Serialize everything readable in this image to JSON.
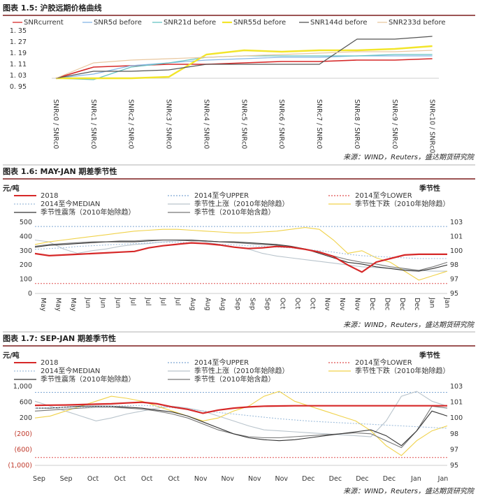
{
  "colors": {
    "title_rule": "#7b1c1c",
    "snr": [
      "#d62828",
      "#86b6e6",
      "#66c2c2",
      "#f2e52a",
      "#555555",
      "#e9c8a0"
    ],
    "season": {
      "current": "#d62828",
      "upper": "#7fa7d4",
      "lower": "#e05050",
      "median": "#9fbedc",
      "rise": "#b9c4cc",
      "fall": "#f0d24a",
      "shock": "#333333",
      "all": "#777777"
    }
  },
  "chart_data": [
    {
      "id": "fig15",
      "type": "line",
      "title": "图表 1.5: 沪胶远期价格曲线",
      "source": "来源：WIND，Reuters，盛达期货研究院",
      "categories": [
        "SNRc0 / SNRc0",
        "SNRc1 / SNRc0",
        "SNRc2 / SNRc0",
        "SNRc3 / SNRc0",
        "SNRc4 / SNRc0",
        "SNRc5 / SNRc0",
        "SNRc6 / SNRc0",
        "SNRc7 / SNRc0",
        "SNRc8 / SNRc0",
        "SNRc9 / SNRc0",
        "SNRc10 / SNRc0"
      ],
      "y_ticks": [
        "1. 35",
        "1. 27",
        "1. 19",
        "1. 11",
        "1. 03",
        "0. 95"
      ],
      "ylim": [
        0.95,
        1.35
      ],
      "series": [
        {
          "name": "SNRcurrent",
          "values": [
            1.01,
            1.09,
            1.1,
            1.11,
            1.11,
            1.12,
            1.13,
            1.13,
            1.14,
            1.14,
            1.15
          ]
        },
        {
          "name": "SNR5d before",
          "values": [
            1.01,
            1.04,
            1.1,
            1.12,
            1.14,
            1.15,
            1.16,
            1.16,
            1.17,
            1.17,
            1.17
          ]
        },
        {
          "name": "SNR21d before",
          "values": [
            1.01,
            1.0,
            1.09,
            1.12,
            1.16,
            1.17,
            1.17,
            1.17,
            1.17,
            1.18,
            1.18
          ]
        },
        {
          "name": "SNR55d before",
          "values": [
            1.01,
            1.01,
            1.01,
            1.02,
            1.18,
            1.21,
            1.2,
            1.21,
            1.21,
            1.22,
            1.24
          ]
        },
        {
          "name": "SNR144d before",
          "values": [
            1.01,
            1.06,
            1.06,
            1.07,
            1.11,
            1.11,
            1.11,
            1.11,
            1.29,
            1.29,
            1.31
          ]
        },
        {
          "name": "SNR233d before",
          "values": [
            1.01,
            1.12,
            1.14,
            1.15,
            1.16,
            1.17,
            1.18,
            1.19,
            1.2,
            1.2,
            1.21
          ]
        }
      ]
    },
    {
      "id": "fig16",
      "type": "line",
      "title": "图表 1.6: MAY-JAN 期差季节性",
      "source": "来源：WIND，Reuters，盛达期货研究院",
      "unit": "元/吨",
      "right_axis_title": "季节性",
      "left_ticks": [
        "500",
        "400",
        "300",
        "200",
        "100",
        "0"
      ],
      "ylim_left": [
        0,
        500
      ],
      "right_ticks": [
        "103",
        "101",
        "100",
        "98",
        "97",
        "95"
      ],
      "ylim_right": [
        95,
        103
      ],
      "x_ticks": [
        "May",
        "May",
        "May",
        "Jun",
        "Jun",
        "Jun",
        "Jul",
        "Jul",
        "Jul",
        "Jul",
        "Aug",
        "Aug",
        "Aug",
        "Sep",
        "Sep",
        "Sep",
        "Oct",
        "Oct",
        "Oct",
        "Nov",
        "Nov",
        "Nov",
        "Dec",
        "Dec",
        "Dec",
        "Dec",
        "Jan",
        "Jan"
      ],
      "legend": [
        {
          "key": "current",
          "label": "2018"
        },
        {
          "key": "upper",
          "label": "2014至今UPPER"
        },
        {
          "key": "lower",
          "label": "2014至今LOWER"
        },
        {
          "key": "median",
          "label": "2014至今MEDIAN"
        },
        {
          "key": "rise",
          "label": "季节性上涨（2010年始除趋）"
        },
        {
          "key": "fall",
          "label": "季节性下跌（2010年始除趋）"
        },
        {
          "key": "shock",
          "label": "季节性震荡（2010年始除趋）"
        },
        {
          "key": "all",
          "label": "季节性（2010年始含趋）"
        }
      ],
      "upper": 470,
      "lower": 70,
      "series": [
        {
          "key": "current",
          "axis": "left",
          "values": [
            280,
            265,
            270,
            275,
            280,
            285,
            290,
            295,
            320,
            335,
            345,
            355,
            350,
            340,
            325,
            315,
            320,
            330,
            325,
            310,
            290,
            260,
            200,
            150,
            220,
            245,
            270,
            275,
            275,
            275
          ]
        },
        {
          "key": "median",
          "axis": "left",
          "values": [
            310,
            315,
            320,
            330,
            335,
            340,
            345,
            350,
            355,
            360,
            360,
            355,
            350,
            345,
            340,
            335,
            330,
            325,
            320,
            310,
            300,
            290,
            275,
            265,
            260,
            255,
            250,
            245,
            245,
            245
          ]
        },
        {
          "key": "rise",
          "axis": "right",
          "values": [
            101.0,
            100.8,
            100.0,
            99.5,
            99.8,
            100.0,
            100.3,
            100.5,
            100.6,
            100.8,
            100.9,
            101.0,
            100.8,
            100.5,
            100.2,
            100.0,
            99.5,
            99.2,
            99.0,
            98.8,
            98.6,
            98.4,
            98.2,
            98.0,
            97.9,
            97.8,
            97.7,
            97.6,
            97.5,
            97.5
          ]
        },
        {
          "key": "fall",
          "axis": "right",
          "values": [
            100.5,
            100.8,
            101.0,
            101.2,
            101.4,
            101.6,
            101.8,
            102.0,
            102.1,
            102.2,
            102.2,
            102.1,
            102.0,
            101.9,
            101.8,
            101.8,
            101.9,
            102.0,
            102.2,
            102.4,
            102.2,
            101.0,
            99.5,
            99.8,
            99.0,
            98.5,
            97.5,
            96.5,
            97.0,
            97.5
          ]
        },
        {
          "key": "shock",
          "axis": "right",
          "values": [
            100.2,
            100.4,
            100.5,
            100.6,
            100.7,
            100.8,
            100.8,
            100.8,
            100.9,
            101.0,
            101.0,
            101.0,
            100.9,
            100.8,
            100.8,
            100.7,
            100.6,
            100.5,
            100.3,
            100.0,
            99.5,
            99.0,
            98.5,
            98.3,
            98.0,
            97.8,
            97.6,
            97.5,
            97.8,
            98.2
          ]
        },
        {
          "key": "all",
          "axis": "right",
          "values": [
            100.3,
            100.5,
            100.6,
            100.7,
            100.8,
            100.8,
            100.9,
            100.9,
            101.0,
            101.0,
            101.0,
            100.9,
            100.9,
            100.8,
            100.7,
            100.6,
            100.5,
            100.4,
            100.2,
            100.0,
            99.7,
            99.2,
            98.8,
            98.5,
            98.3,
            98.0,
            97.8,
            97.6,
            98.0,
            98.5
          ]
        }
      ]
    },
    {
      "id": "fig17",
      "type": "line",
      "title": "图表 1.7: SEP-JAN 期差季节性",
      "source": "来源：WIND，Reuters，盛达期货研究院",
      "unit": "元/吨",
      "right_axis_title": "季节性",
      "left_ticks": [
        "1,000",
        "600",
        "200",
        "(200)",
        "(600)",
        "(1,000)"
      ],
      "left_ticks_red": [
        false,
        false,
        false,
        true,
        true,
        true
      ],
      "ylim_left": [
        -1000,
        1000
      ],
      "right_ticks": [
        "103",
        "101",
        "100",
        "98",
        "97",
        "95"
      ],
      "ylim_right": [
        95,
        103
      ],
      "x_ticks": [
        "Sep",
        "Sep",
        "Oct",
        "Oct",
        "Oct",
        "Oct",
        "Nov",
        "Nov",
        "Nov",
        "Nov",
        "Dec",
        "Dec",
        "Dec",
        "Dec",
        "Jan",
        "Jan"
      ],
      "legend": [
        {
          "key": "current",
          "label": "2018"
        },
        {
          "key": "upper",
          "label": "2014至今UPPER"
        },
        {
          "key": "lower",
          "label": "2014至今LOWER"
        },
        {
          "key": "median",
          "label": "2014至今MEDIAN"
        },
        {
          "key": "rise",
          "label": "季节性上涨（2010年始除趋）"
        },
        {
          "key": "fall",
          "label": "季节性下跌（2010年始除趋）"
        },
        {
          "key": "shock",
          "label": "季节性震荡（2010年始除趋）"
        },
        {
          "key": "all",
          "label": "季节性（2010年始含趋）"
        }
      ],
      "upper": 850,
      "lower": -800,
      "series": [
        {
          "key": "current",
          "axis": "left",
          "values": [
            520,
            525,
            530,
            540,
            550,
            560,
            580,
            600,
            560,
            480,
            420,
            320,
            400,
            450,
            480,
            500,
            505,
            510,
            510,
            510,
            510,
            510,
            510,
            510,
            510,
            510,
            510,
            510
          ]
        },
        {
          "key": "median",
          "axis": "left",
          "values": [
            450,
            460,
            470,
            480,
            490,
            500,
            510,
            520,
            500,
            460,
            420,
            380,
            340,
            300,
            260,
            220,
            180,
            150,
            120,
            100,
            80,
            60,
            40,
            20,
            0,
            -20,
            -40,
            -60
          ]
        },
        {
          "key": "rise",
          "axis": "right",
          "values": [
            101.5,
            101.0,
            100.5,
            100.0,
            99.5,
            99.8,
            100.2,
            100.5,
            100.8,
            101.0,
            100.8,
            100.5,
            100.0,
            99.5,
            99.0,
            98.6,
            98.5,
            98.4,
            98.3,
            98.2,
            98.1,
            98.0,
            97.9,
            99.5,
            102.0,
            102.5,
            101.5,
            101.0
          ]
        },
        {
          "key": "fall",
          "axis": "right",
          "values": [
            99.8,
            100.0,
            100.5,
            101.0,
            101.5,
            102.0,
            101.8,
            101.5,
            101.0,
            100.5,
            100.0,
            99.5,
            99.8,
            100.5,
            101.0,
            102.0,
            102.5,
            101.5,
            101.0,
            100.5,
            100.0,
            99.5,
            98.5,
            97.0,
            96.0,
            97.5,
            98.5,
            99.0
          ]
        },
        {
          "key": "shock",
          "axis": "right",
          "values": [
            100.8,
            100.8,
            100.9,
            101.0,
            101.0,
            101.0,
            100.9,
            100.8,
            100.6,
            100.4,
            100.0,
            99.4,
            98.8,
            98.2,
            97.8,
            97.6,
            97.5,
            97.6,
            97.8,
            98.0,
            98.2,
            98.4,
            98.6,
            98.0,
            97.0,
            98.5,
            100.5,
            100.0
          ]
        },
        {
          "key": "all",
          "axis": "right",
          "values": [
            100.5,
            100.6,
            100.7,
            100.8,
            100.9,
            100.9,
            100.8,
            100.7,
            100.5,
            100.2,
            99.8,
            99.2,
            98.6,
            98.2,
            97.9,
            97.8,
            97.8,
            97.9,
            98.0,
            98.1,
            98.2,
            98.3,
            98.2,
            97.5,
            96.8,
            98.5,
            101.0,
            100.8
          ]
        }
      ]
    }
  ]
}
